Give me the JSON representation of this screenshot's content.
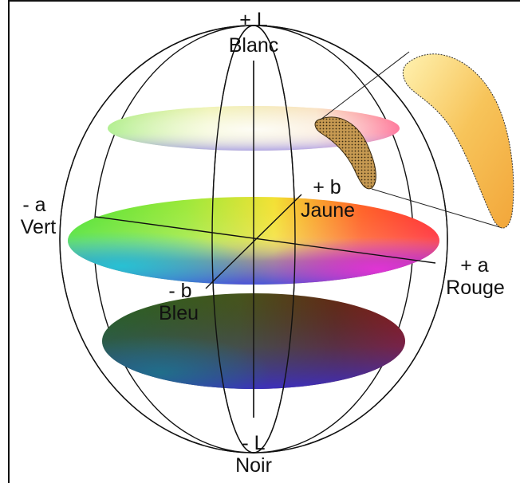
{
  "labels": {
    "plus_l": "+ L",
    "blanc": "Blanc",
    "minus_l": "- L",
    "noir": "Noir",
    "minus_a": "- a",
    "vert": "Vert",
    "plus_a": "+ a",
    "rouge": "Rouge",
    "plus_b": "+ b",
    "jaune": "Jaune",
    "minus_b": "- b",
    "bleu": "Bleu"
  },
  "colors": {
    "outline": "#111111",
    "green": "#3fe02a",
    "yellow": "#f0e628",
    "red": "#ff1a2e",
    "magenta": "#e533d6",
    "blue": "#2a3bf0",
    "cyan": "#22c8d8",
    "dark_green": "#1e5a1c",
    "dark_red": "#7a0f0c",
    "dark_blue": "#2c2f9c",
    "selection_fill": "#f6b640"
  }
}
